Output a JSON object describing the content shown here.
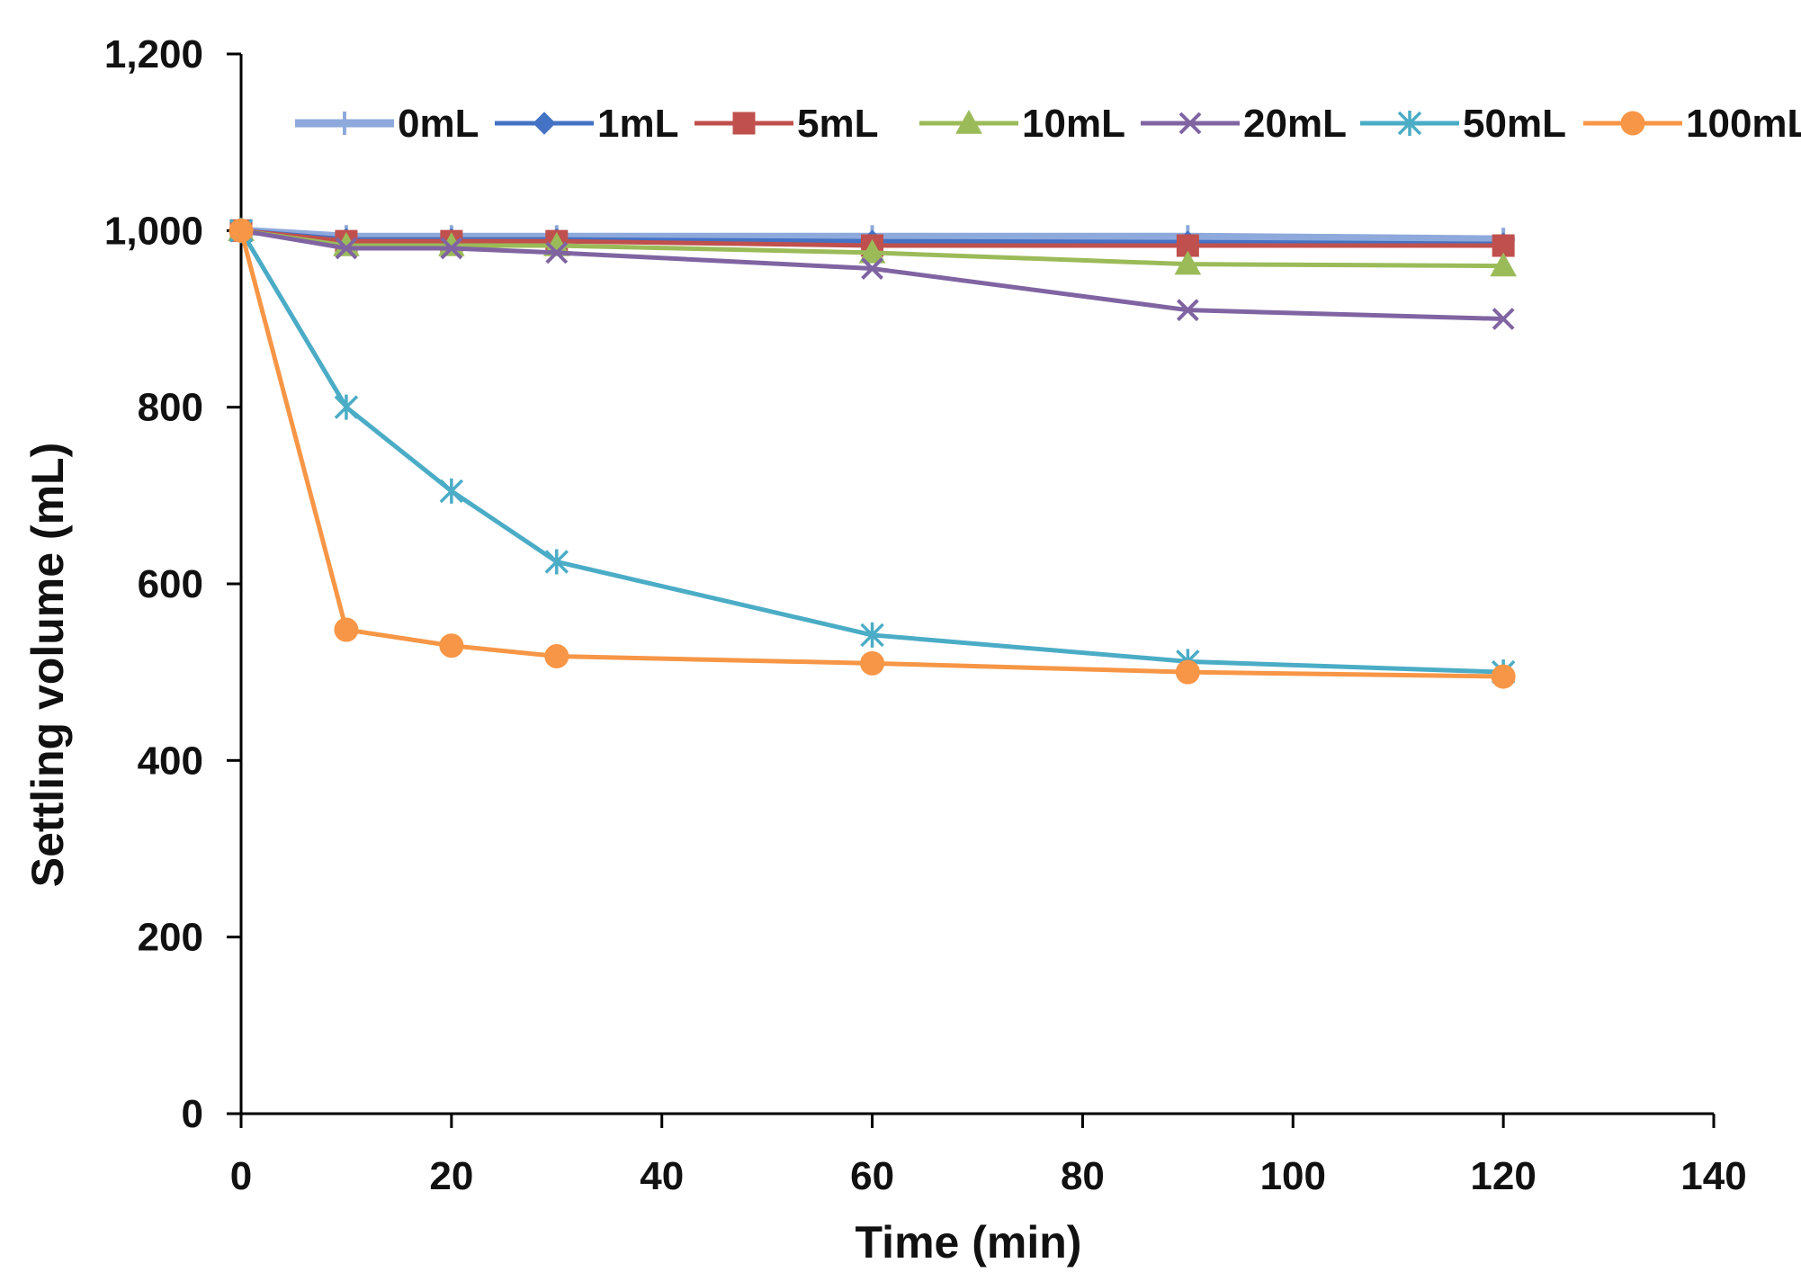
{
  "chart_data": {
    "type": "line",
    "title": "",
    "xlabel": "Time (min)",
    "ylabel": "Settling volume (mL)",
    "xlim": [
      0,
      140
    ],
    "ylim": [
      0,
      1200
    ],
    "xticks": [
      0,
      20,
      40,
      60,
      80,
      100,
      120,
      140
    ],
    "yticks": [
      0,
      200,
      400,
      600,
      800,
      1000,
      1200
    ],
    "xtick_labels": [
      "0",
      "20",
      "40",
      "60",
      "80",
      "100",
      "120",
      "140"
    ],
    "ytick_labels": [
      "0",
      "200",
      "400",
      "600",
      "800",
      "1,000",
      "1,200"
    ],
    "grid": false,
    "legend_position": "top",
    "x": [
      0,
      10,
      20,
      30,
      60,
      90,
      120
    ],
    "series": [
      {
        "name": "0mL",
        "color": "#8EA9DB",
        "marker": "plus",
        "values": [
          1000,
          993,
          993,
          993,
          993,
          993,
          990
        ]
      },
      {
        "name": "1mL",
        "color": "#4472C4",
        "marker": "diamond",
        "values": [
          1000,
          990,
          990,
          990,
          988,
          987,
          985
        ]
      },
      {
        "name": "5mL",
        "color": "#C0504D",
        "marker": "square",
        "values": [
          1000,
          988,
          988,
          988,
          983,
          983,
          983
        ]
      },
      {
        "name": "10mL",
        "color": "#9BBB59",
        "marker": "triangle",
        "values": [
          1000,
          983,
          983,
          983,
          975,
          962,
          960
        ]
      },
      {
        "name": "20mL",
        "color": "#8064A2",
        "marker": "x",
        "values": [
          1000,
          980,
          980,
          975,
          957,
          910,
          900
        ]
      },
      {
        "name": "50mL",
        "color": "#4BACC6",
        "marker": "star",
        "values": [
          1000,
          800,
          705,
          625,
          542,
          512,
          500
        ]
      },
      {
        "name": "100mL",
        "color": "#F79646",
        "marker": "circle",
        "values": [
          1000,
          548,
          530,
          518,
          510,
          500,
          495
        ]
      }
    ]
  }
}
